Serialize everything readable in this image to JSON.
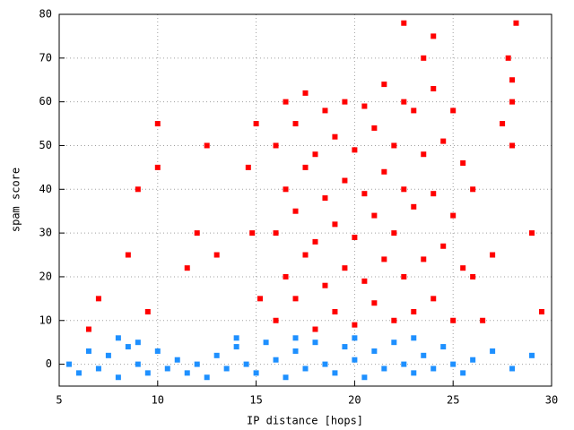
{
  "chart_data": {
    "type": "scatter",
    "x_label": "IP distance [hops]",
    "y_label": "spam score",
    "xlim": [
      5,
      30
    ],
    "ylim": [
      -5,
      80
    ],
    "xticks": [
      5,
      10,
      15,
      20,
      25,
      30
    ],
    "yticks": [
      0,
      10,
      20,
      30,
      40,
      50,
      60,
      70,
      80
    ],
    "grid": true,
    "series": [
      {
        "color": "#ff0000",
        "x": [
          16,
          16.5,
          16,
          16.5,
          16,
          16.5,
          17,
          17.5,
          17,
          17.5,
          17,
          17.5,
          18,
          18.5,
          18,
          18.5,
          18,
          18.5,
          19,
          19.5,
          19,
          19.5,
          19,
          19.5,
          20,
          20.5,
          20,
          20.5,
          20,
          20.5,
          21,
          21.5,
          21,
          21.5,
          21,
          21.5,
          22,
          22.5,
          22,
          22.5,
          22,
          22.5,
          23,
          23.5,
          23,
          23.5,
          23,
          23.5,
          24,
          24.5,
          24,
          24.5,
          24,
          24,
          25,
          25.5,
          25,
          25.5,
          25,
          26,
          26,
          14.8,
          14.6,
          15,
          15.2,
          13,
          12,
          11.5,
          9,
          8.5,
          9.5,
          10,
          7,
          6.5,
          28,
          28,
          27.8,
          28.2,
          28,
          27.5,
          29,
          29.5,
          27,
          26.5,
          22.5,
          12.5,
          10
        ],
        "values": [
          10,
          20,
          30,
          40,
          50,
          60,
          15,
          25,
          35,
          45,
          55,
          62,
          8,
          18,
          28,
          38,
          48,
          58,
          12,
          22,
          32,
          42,
          52,
          60,
          9,
          19,
          29,
          39,
          49,
          59,
          14,
          24,
          34,
          44,
          54,
          64,
          10,
          20,
          30,
          40,
          50,
          60,
          12,
          24,
          36,
          48,
          58,
          70,
          15,
          27,
          39,
          51,
          63,
          75,
          10,
          22,
          34,
          46,
          58,
          20,
          40,
          30,
          45,
          55,
          15,
          25,
          30,
          22,
          40,
          25,
          12,
          55,
          15,
          8,
          50,
          60,
          70,
          78,
          65,
          55,
          30,
          12,
          25,
          10,
          78,
          50,
          45
        ]
      },
      {
        "color": "#1e90ff",
        "x": [
          5.5,
          6,
          6.5,
          7,
          7.5,
          8,
          8.5,
          9,
          9.5,
          10,
          10.5,
          11,
          11.5,
          12,
          12.5,
          13,
          13.5,
          14,
          14.5,
          15,
          15.5,
          16,
          16.5,
          17,
          17.5,
          18,
          18.5,
          19,
          19.5,
          20,
          20.5,
          21,
          21.5,
          22,
          22.5,
          23,
          23.5,
          24,
          24.5,
          25,
          25.5,
          26,
          27,
          28,
          29,
          8,
          9,
          14,
          17,
          20,
          23
        ],
        "values": [
          0,
          -2,
          3,
          -1,
          2,
          -3,
          4,
          0,
          -2,
          3,
          -1,
          1,
          -2,
          0,
          -3,
          2,
          -1,
          4,
          0,
          -2,
          5,
          1,
          -3,
          3,
          -1,
          5,
          0,
          -2,
          4,
          1,
          -3,
          3,
          -1,
          5,
          0,
          -2,
          2,
          -1,
          4,
          0,
          -2,
          1,
          3,
          -1,
          2,
          6,
          5,
          6,
          6,
          6,
          6
        ]
      }
    ]
  }
}
